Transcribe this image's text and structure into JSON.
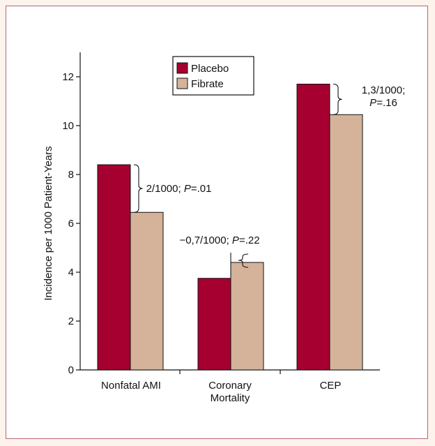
{
  "chart_data": {
    "type": "bar",
    "title": "",
    "xlabel": "",
    "ylabel": "Incidence per 1000 Patient-Years",
    "ylim": [
      0,
      13
    ],
    "yticks": [
      "0",
      "2",
      "4",
      "6",
      "8",
      "10",
      "12"
    ],
    "categories": [
      {
        "lines": [
          "Nonfatal AMI"
        ]
      },
      {
        "lines": [
          "Coronary",
          "Mortality"
        ]
      },
      {
        "lines": [
          "CEP"
        ]
      }
    ],
    "series": [
      {
        "name": "Placebo",
        "color": "#a5002f",
        "values": [
          8.4,
          3.75,
          11.7
        ]
      },
      {
        "name": "Fibrate",
        "color": "#d4b39a",
        "values": [
          6.45,
          4.4,
          10.45
        ]
      }
    ],
    "legend_position": "top-center",
    "grid": false,
    "annotations": [
      {
        "category": 0,
        "segments": [
          {
            "text": "2/1000; "
          },
          {
            "text": "P",
            "italic": true
          },
          {
            "text": "=.01"
          }
        ]
      },
      {
        "category": 1,
        "segments": [
          {
            "text": "−0,7/1000; "
          },
          {
            "text": "P",
            "italic": true
          },
          {
            "text": "=.22"
          }
        ]
      },
      {
        "category": 2,
        "line1": "1,3/1000;",
        "segments": [
          {
            "text": "P",
            "italic": true
          },
          {
            "text": "=.16"
          }
        ]
      }
    ]
  }
}
